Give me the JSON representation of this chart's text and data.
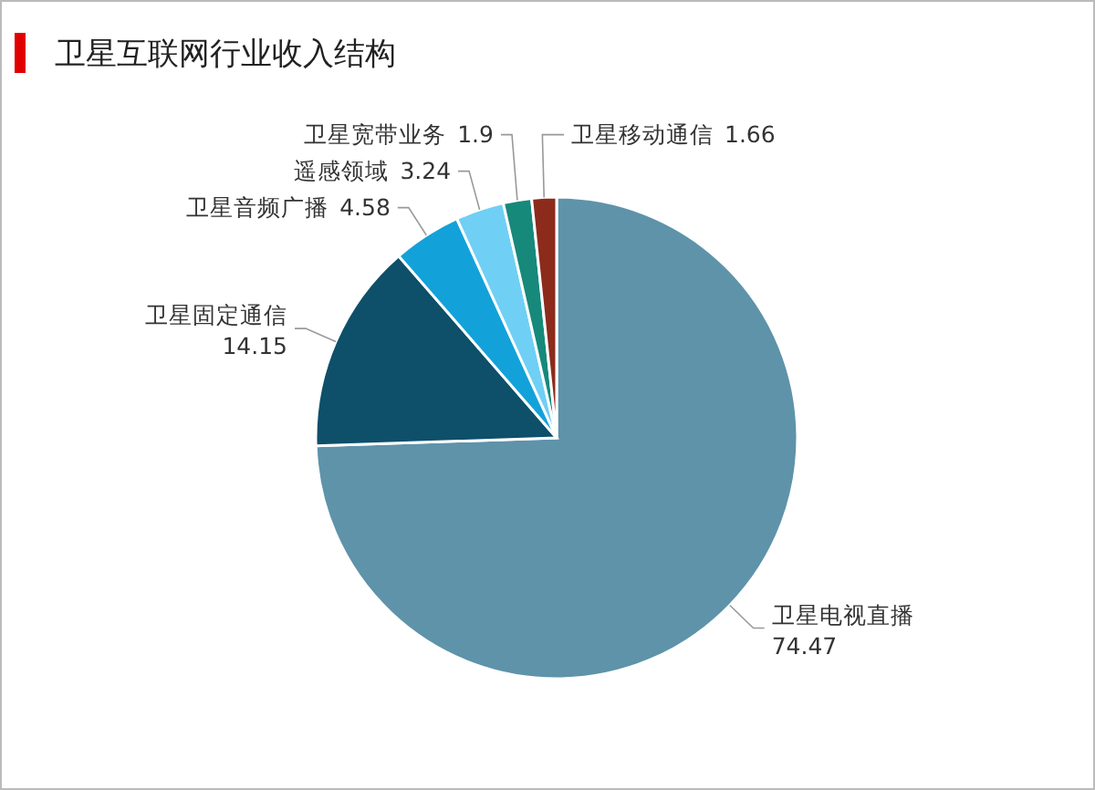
{
  "chart_data": {
    "type": "pie",
    "title": "卫星互联网行业收入结构",
    "categories": [
      "卫星电视直播",
      "卫星固定通信",
      "卫星音频广播",
      "遥感领域",
      "卫星宽带业务",
      "卫星移动通信"
    ],
    "values": [
      74.47,
      14.15,
      4.58,
      3.24,
      1.9,
      1.66
    ],
    "colors": [
      "#5e93aa",
      "#0e4f6a",
      "#12a2d9",
      "#70cff4",
      "#16897a",
      "#8c2b1b"
    ],
    "data_labels": true
  }
}
